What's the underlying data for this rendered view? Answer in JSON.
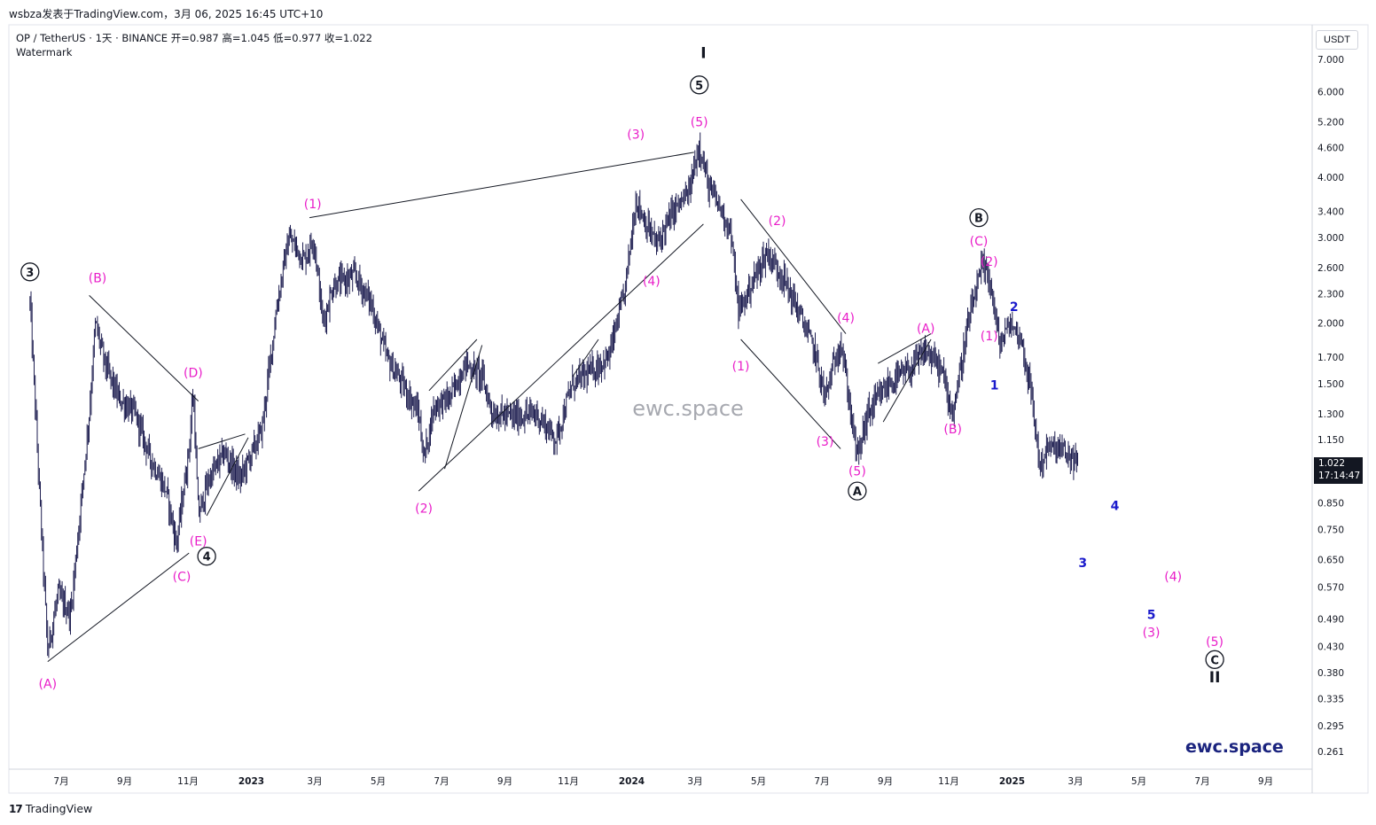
{
  "header": {
    "published": "wsbza发表于TradingView.com，3月 06, 2025 16:45 UTC+10",
    "symbol_line": "OP / TetherUS · 1天 · BINANCE  开=0.987  高=1.045  低=0.977  收=1.022",
    "watermark_label": "Watermark"
  },
  "footer": {
    "brand_logo": "17",
    "brand_name": "TradingView"
  },
  "price_axis": {
    "currency": "USDT",
    "ticks": [
      "7.000",
      "6.000",
      "5.200",
      "4.600",
      "4.000",
      "3.400",
      "3.000",
      "2.600",
      "2.300",
      "2.000",
      "1.700",
      "1.500",
      "1.300",
      "1.150",
      "0.850",
      "0.750",
      "0.650",
      "0.570",
      "0.490",
      "0.430",
      "0.380",
      "0.335",
      "0.295",
      "0.261"
    ],
    "last_price": "1.022",
    "countdown": "17:14:47"
  },
  "time_axis": {
    "labels": [
      "7月",
      "9月",
      "11月",
      "2023",
      "3月",
      "5月",
      "7月",
      "9月",
      "11月",
      "2024",
      "3月",
      "5月",
      "7月",
      "9月",
      "11月",
      "2025",
      "3月",
      "5月",
      "7月",
      "9月"
    ]
  },
  "watermark_center": "ewc.space",
  "corner_watermark": "ewc.space",
  "colors": {
    "magenta": "#e91ec9",
    "blue": "#1a1acc",
    "black": "#131722",
    "candles": "#1e1e50"
  },
  "chart_data": {
    "type": "candlestick",
    "title": "OP / TetherUS · 1天 · BINANCE",
    "ylabel": "USDT",
    "y_scale": "log",
    "ylim": [
      0.24,
      8.0
    ],
    "path_points": [
      {
        "date": "2022-06-01",
        "price": 2.2
      },
      {
        "date": "2022-06-05",
        "price": 1.5
      },
      {
        "date": "2022-06-10",
        "price": 0.9
      },
      {
        "date": "2022-06-18",
        "price": 0.42
      },
      {
        "date": "2022-06-28",
        "price": 0.55
      },
      {
        "date": "2022-07-10",
        "price": 0.5
      },
      {
        "date": "2022-07-20",
        "price": 0.85
      },
      {
        "date": "2022-07-28",
        "price": 1.3
      },
      {
        "date": "2022-08-03",
        "price": 2.0
      },
      {
        "date": "2022-08-12",
        "price": 1.65
      },
      {
        "date": "2022-08-25",
        "price": 1.4
      },
      {
        "date": "2022-09-10",
        "price": 1.3
      },
      {
        "date": "2022-09-25",
        "price": 1.05
      },
      {
        "date": "2022-10-10",
        "price": 0.9
      },
      {
        "date": "2022-10-20",
        "price": 0.7
      },
      {
        "date": "2022-11-01",
        "price": 1.1
      },
      {
        "date": "2022-11-05",
        "price": 1.45
      },
      {
        "date": "2022-11-10",
        "price": 0.8
      },
      {
        "date": "2022-11-20",
        "price": 0.95
      },
      {
        "date": "2022-12-05",
        "price": 1.08
      },
      {
        "date": "2022-12-20",
        "price": 0.95
      },
      {
        "date": "2023-01-10",
        "price": 1.2
      },
      {
        "date": "2023-01-25",
        "price": 2.2
      },
      {
        "date": "2023-02-05",
        "price": 3.0
      },
      {
        "date": "2023-02-20",
        "price": 2.7
      },
      {
        "date": "2023-03-01",
        "price": 3.0
      },
      {
        "date": "2023-03-10",
        "price": 2.0
      },
      {
        "date": "2023-03-20",
        "price": 2.4
      },
      {
        "date": "2023-04-10",
        "price": 2.5
      },
      {
        "date": "2023-04-25",
        "price": 2.2
      },
      {
        "date": "2023-05-10",
        "price": 1.7
      },
      {
        "date": "2023-05-25",
        "price": 1.5
      },
      {
        "date": "2023-06-10",
        "price": 1.3
      },
      {
        "date": "2023-06-15",
        "price": 1.05
      },
      {
        "date": "2023-06-25",
        "price": 1.35
      },
      {
        "date": "2023-07-10",
        "price": 1.4
      },
      {
        "date": "2023-07-25",
        "price": 1.65
      },
      {
        "date": "2023-08-10",
        "price": 1.55
      },
      {
        "date": "2023-08-20",
        "price": 1.3
      },
      {
        "date": "2023-09-10",
        "price": 1.28
      },
      {
        "date": "2023-10-01",
        "price": 1.3
      },
      {
        "date": "2023-10-20",
        "price": 1.15
      },
      {
        "date": "2023-11-05",
        "price": 1.5
      },
      {
        "date": "2023-11-25",
        "price": 1.6
      },
      {
        "date": "2023-12-10",
        "price": 1.7
      },
      {
        "date": "2023-12-25",
        "price": 2.3
      },
      {
        "date": "2024-01-05",
        "price": 3.6
      },
      {
        "date": "2024-01-15",
        "price": 3.2
      },
      {
        "date": "2024-01-25",
        "price": 2.9
      },
      {
        "date": "2024-02-10",
        "price": 3.4
      },
      {
        "date": "2024-02-25",
        "price": 3.7
      },
      {
        "date": "2024-03-06",
        "price": 4.7
      },
      {
        "date": "2024-03-15",
        "price": 3.8
      },
      {
        "date": "2024-03-25",
        "price": 3.5
      },
      {
        "date": "2024-04-05",
        "price": 3.1
      },
      {
        "date": "2024-04-13",
        "price": 2.1
      },
      {
        "date": "2024-04-25",
        "price": 2.4
      },
      {
        "date": "2024-05-10",
        "price": 2.8
      },
      {
        "date": "2024-05-25",
        "price": 2.5
      },
      {
        "date": "2024-06-10",
        "price": 2.1
      },
      {
        "date": "2024-06-25",
        "price": 1.75
      },
      {
        "date": "2024-07-05",
        "price": 1.4
      },
      {
        "date": "2024-07-20",
        "price": 1.85
      },
      {
        "date": "2024-08-05",
        "price": 1.05
      },
      {
        "date": "2024-08-15",
        "price": 1.3
      },
      {
        "date": "2024-09-05",
        "price": 1.5
      },
      {
        "date": "2024-09-25",
        "price": 1.6
      },
      {
        "date": "2024-10-10",
        "price": 1.75
      },
      {
        "date": "2024-10-25",
        "price": 1.6
      },
      {
        "date": "2024-11-05",
        "price": 1.3
      },
      {
        "date": "2024-11-20",
        "price": 2.0
      },
      {
        "date": "2024-12-03",
        "price": 2.6
      },
      {
        "date": "2024-12-10",
        "price": 2.5
      },
      {
        "date": "2024-12-20",
        "price": 1.8
      },
      {
        "date": "2024-12-30",
        "price": 2.0
      },
      {
        "date": "2025-01-10",
        "price": 1.85
      },
      {
        "date": "2025-01-20",
        "price": 1.4
      },
      {
        "date": "2025-01-28",
        "price": 1.0
      },
      {
        "date": "2025-02-03",
        "price": 1.1
      },
      {
        "date": "2025-02-15",
        "price": 1.1
      },
      {
        "date": "2025-03-06",
        "price": 1.022
      }
    ],
    "trendlines": [
      {
        "from": {
          "date": "2022-06-18",
          "price": 0.4
        },
        "to": {
          "date": "2022-11-01",
          "price": 0.67
        }
      },
      {
        "from": {
          "date": "2022-07-28",
          "price": 2.28
        },
        "to": {
          "date": "2022-11-10",
          "price": 1.38
        }
      },
      {
        "from": {
          "date": "2022-11-10",
          "price": 1.1
        },
        "to": {
          "date": "2022-12-25",
          "price": 1.18
        }
      },
      {
        "from": {
          "date": "2022-11-18",
          "price": 0.8
        },
        "to": {
          "date": "2022-12-28",
          "price": 1.16
        }
      },
      {
        "from": {
          "date": "2023-02-25",
          "price": 3.3
        },
        "to": {
          "date": "2024-03-01",
          "price": 4.5
        }
      },
      {
        "from": {
          "date": "2023-06-10",
          "price": 0.9
        },
        "to": {
          "date": "2024-03-10",
          "price": 3.2
        }
      },
      {
        "from": {
          "date": "2023-06-20",
          "price": 1.45
        },
        "to": {
          "date": "2023-08-05",
          "price": 1.85
        }
      },
      {
        "from": {
          "date": "2023-07-05",
          "price": 1.0
        },
        "to": {
          "date": "2023-08-10",
          "price": 1.8
        }
      },
      {
        "from": {
          "date": "2023-11-05",
          "price": 1.55
        },
        "to": {
          "date": "2023-11-30",
          "price": 1.85
        }
      },
      {
        "from": {
          "date": "2024-04-15",
          "price": 3.6
        },
        "to": {
          "date": "2024-07-25",
          "price": 1.9
        }
      },
      {
        "from": {
          "date": "2024-04-15",
          "price": 1.85
        },
        "to": {
          "date": "2024-07-20",
          "price": 1.1
        }
      },
      {
        "from": {
          "date": "2024-08-25",
          "price": 1.65
        },
        "to": {
          "date": "2024-10-15",
          "price": 1.9
        }
      },
      {
        "from": {
          "date": "2024-08-30",
          "price": 1.25
        },
        "to": {
          "date": "2024-10-15",
          "price": 1.85
        }
      }
    ],
    "wave_labels": [
      {
        "text": "3",
        "style": "circle",
        "color": "black",
        "date": "2022-06-01",
        "price": 2.55
      },
      {
        "text": "(A)",
        "style": "plain",
        "color": "magenta",
        "date": "2022-06-18",
        "price": 0.36
      },
      {
        "text": "(B)",
        "style": "plain",
        "color": "magenta",
        "date": "2022-08-05",
        "price": 2.48
      },
      {
        "text": "(C)",
        "style": "plain",
        "color": "magenta",
        "date": "2022-10-25",
        "price": 0.6
      },
      {
        "text": "(D)",
        "style": "plain",
        "color": "magenta",
        "date": "2022-11-05",
        "price": 1.58
      },
      {
        "text": "(E)",
        "style": "plain",
        "color": "magenta",
        "date": "2022-11-10",
        "price": 0.71
      },
      {
        "text": "4",
        "style": "circle",
        "color": "black",
        "date": "2022-11-18",
        "price": 0.66
      },
      {
        "text": "(1)",
        "style": "plain",
        "color": "magenta",
        "date": "2023-02-28",
        "price": 3.52
      },
      {
        "text": "(2)",
        "style": "plain",
        "color": "magenta",
        "date": "2023-06-15",
        "price": 0.83
      },
      {
        "text": "(3)",
        "style": "plain",
        "color": "magenta",
        "date": "2024-01-05",
        "price": 4.9
      },
      {
        "text": "(4)",
        "style": "plain",
        "color": "magenta",
        "date": "2024-01-20",
        "price": 2.44
      },
      {
        "text": "(5)",
        "style": "plain",
        "color": "magenta",
        "date": "2024-03-06",
        "price": 5.2
      },
      {
        "text": "5",
        "style": "circle",
        "color": "black",
        "date": "2024-03-06",
        "price": 6.2
      },
      {
        "text": "I",
        "style": "plain",
        "color": "black",
        "date": "2024-03-10",
        "price": 7.2
      },
      {
        "text": "(1)",
        "style": "plain",
        "color": "magenta",
        "date": "2024-04-15",
        "price": 1.63
      },
      {
        "text": "(2)",
        "style": "plain",
        "color": "magenta",
        "date": "2024-05-20",
        "price": 3.25
      },
      {
        "text": "(3)",
        "style": "plain",
        "color": "magenta",
        "date": "2024-07-05",
        "price": 1.14
      },
      {
        "text": "(4)",
        "style": "plain",
        "color": "magenta",
        "date": "2024-07-25",
        "price": 2.05
      },
      {
        "text": "(5)",
        "style": "plain",
        "color": "magenta",
        "date": "2024-08-05",
        "price": 0.99
      },
      {
        "text": "A",
        "style": "circle",
        "color": "black",
        "date": "2024-08-05",
        "price": 0.9
      },
      {
        "text": "(A)",
        "style": "plain",
        "color": "magenta",
        "date": "2024-10-10",
        "price": 1.95
      },
      {
        "text": "(B)",
        "style": "plain",
        "color": "magenta",
        "date": "2024-11-05",
        "price": 1.21
      },
      {
        "text": "(C)",
        "style": "plain",
        "color": "magenta",
        "date": "2024-11-30",
        "price": 2.95
      },
      {
        "text": "B",
        "style": "circle",
        "color": "black",
        "date": "2024-11-30",
        "price": 3.3
      },
      {
        "text": "(2)",
        "style": "plain",
        "color": "magenta",
        "date": "2024-12-10",
        "price": 2.68
      },
      {
        "text": "(1)",
        "style": "plain",
        "color": "magenta",
        "date": "2024-12-10",
        "price": 1.88
      },
      {
        "text": "1",
        "style": "plain",
        "color": "blue",
        "date": "2024-12-15",
        "price": 1.49
      },
      {
        "text": "2",
        "style": "plain",
        "color": "blue",
        "date": "2025-01-03",
        "price": 2.16
      },
      {
        "text": "4",
        "style": "plain",
        "color": "blue",
        "date": "2025-04-10",
        "price": 0.84
      },
      {
        "text": "3",
        "style": "plain",
        "color": "blue",
        "date": "2025-03-10",
        "price": 0.64
      },
      {
        "text": "(4)",
        "style": "plain",
        "color": "magenta",
        "date": "2025-06-05",
        "price": 0.6
      },
      {
        "text": "5",
        "style": "plain",
        "color": "blue",
        "date": "2025-05-15",
        "price": 0.5
      },
      {
        "text": "(3)",
        "style": "plain",
        "color": "magenta",
        "date": "2025-05-15",
        "price": 0.46
      },
      {
        "text": "(5)",
        "style": "plain",
        "color": "magenta",
        "date": "2025-07-15",
        "price": 0.44
      },
      {
        "text": "C",
        "style": "circle",
        "color": "black",
        "date": "2025-07-15",
        "price": 0.404
      },
      {
        "text": "II",
        "style": "plain",
        "color": "black",
        "date": "2025-07-15",
        "price": 0.37
      }
    ]
  }
}
